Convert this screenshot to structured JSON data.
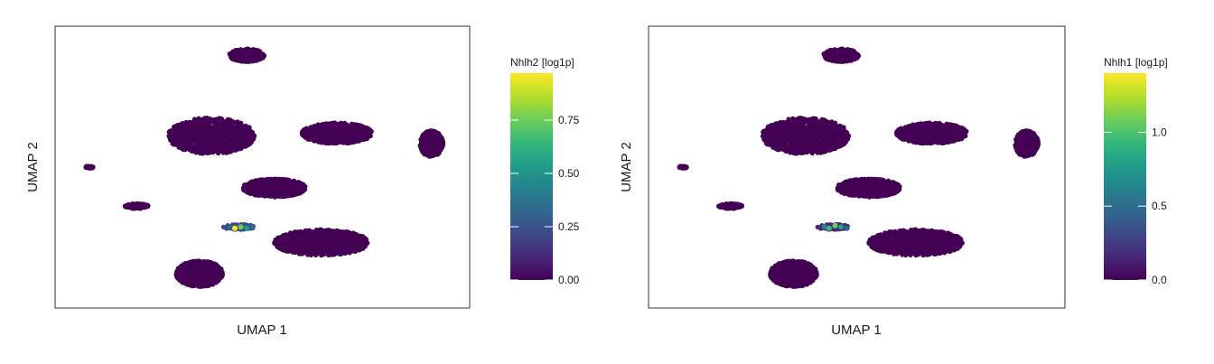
{
  "colors": {
    "background_cell": "#440154",
    "frame": "#333333",
    "viridis": [
      "#440154",
      "#482878",
      "#3e4989",
      "#31688e",
      "#26828e",
      "#1f9e89",
      "#35b779",
      "#6ece58",
      "#b5de2b",
      "#fde725"
    ]
  },
  "chart_data": [
    {
      "type": "scatter",
      "subtype": "hexbin-embedding",
      "xlabel": "UMAP 1",
      "ylabel": "UMAP 2",
      "legend": {
        "title": "Nhlh2 [log1p]",
        "placement": "right",
        "range": [
          0,
          0.97
        ],
        "ticks": [
          0.0,
          0.25,
          0.5,
          0.75
        ],
        "tick_labels": [
          "0.00",
          "0.25",
          "0.50",
          "0.75"
        ]
      },
      "grid": false,
      "clusters": [
        {
          "center": [
            0.46,
            0.93
          ],
          "spread": [
            0.045,
            0.025
          ],
          "value": 0
        },
        {
          "center": [
            0.37,
            0.62
          ],
          "spread": [
            0.11,
            0.07
          ],
          "value": 0
        },
        {
          "center": [
            0.53,
            0.42
          ],
          "spread": [
            0.08,
            0.035
          ],
          "value": 0
        },
        {
          "center": [
            0.69,
            0.63
          ],
          "spread": [
            0.09,
            0.04
          ],
          "value": 0
        },
        {
          "center": [
            0.93,
            0.59
          ],
          "spread": [
            0.03,
            0.05
          ],
          "value": 0
        },
        {
          "center": [
            0.18,
            0.35
          ],
          "spread": [
            0.03,
            0.01
          ],
          "value": 0
        },
        {
          "center": [
            0.06,
            0.5
          ],
          "spread": [
            0.01,
            0.005
          ],
          "value": 0
        },
        {
          "center": [
            0.65,
            0.21
          ],
          "spread": [
            0.12,
            0.05
          ],
          "value": 0
        },
        {
          "center": [
            0.34,
            0.09
          ],
          "spread": [
            0.06,
            0.05
          ],
          "value": 0
        },
        {
          "center": [
            0.44,
            0.27
          ],
          "spread": [
            0.04,
            0.01
          ],
          "value": 0.5
        }
      ],
      "highlight_cells": [
        {
          "x": 0.418,
          "y": 0.27,
          "value": 0.35
        },
        {
          "x": 0.43,
          "y": 0.265,
          "value": 0.97
        },
        {
          "x": 0.445,
          "y": 0.27,
          "value": 0.8
        },
        {
          "x": 0.46,
          "y": 0.265,
          "value": 0.55
        },
        {
          "x": 0.475,
          "y": 0.27,
          "value": 0.3
        }
      ]
    },
    {
      "type": "scatter",
      "subtype": "hexbin-embedding",
      "xlabel": "UMAP 1",
      "ylabel": "UMAP 2",
      "legend": {
        "title": "Nhlh1 [log1p]",
        "placement": "right",
        "range": [
          0,
          1.4
        ],
        "ticks": [
          0.0,
          0.5,
          1.0
        ],
        "tick_labels": [
          "0.0",
          "0.5",
          "1.0"
        ]
      },
      "grid": false,
      "clusters": [
        {
          "center": [
            0.46,
            0.93
          ],
          "spread": [
            0.045,
            0.025
          ],
          "value": 0
        },
        {
          "center": [
            0.37,
            0.62
          ],
          "spread": [
            0.11,
            0.07
          ],
          "value": 0
        },
        {
          "center": [
            0.53,
            0.42
          ],
          "spread": [
            0.08,
            0.035
          ],
          "value": 0
        },
        {
          "center": [
            0.69,
            0.63
          ],
          "spread": [
            0.09,
            0.04
          ],
          "value": 0
        },
        {
          "center": [
            0.93,
            0.59
          ],
          "spread": [
            0.03,
            0.05
          ],
          "value": 0
        },
        {
          "center": [
            0.18,
            0.35
          ],
          "spread": [
            0.03,
            0.01
          ],
          "value": 0
        },
        {
          "center": [
            0.06,
            0.5
          ],
          "spread": [
            0.01,
            0.005
          ],
          "value": 0
        },
        {
          "center": [
            0.65,
            0.21
          ],
          "spread": [
            0.12,
            0.05
          ],
          "value": 0
        },
        {
          "center": [
            0.34,
            0.09
          ],
          "spread": [
            0.06,
            0.05
          ],
          "value": 0
        },
        {
          "center": [
            0.44,
            0.27
          ],
          "spread": [
            0.04,
            0.01
          ],
          "value": 0.3
        }
      ],
      "highlight_cells": [
        {
          "x": 0.418,
          "y": 0.27,
          "value": 0.6
        },
        {
          "x": 0.43,
          "y": 0.265,
          "value": 0.9
        },
        {
          "x": 0.445,
          "y": 0.275,
          "value": 1.1
        },
        {
          "x": 0.46,
          "y": 0.27,
          "value": 0.7
        },
        {
          "x": 0.475,
          "y": 0.265,
          "value": 0.5
        }
      ]
    }
  ]
}
